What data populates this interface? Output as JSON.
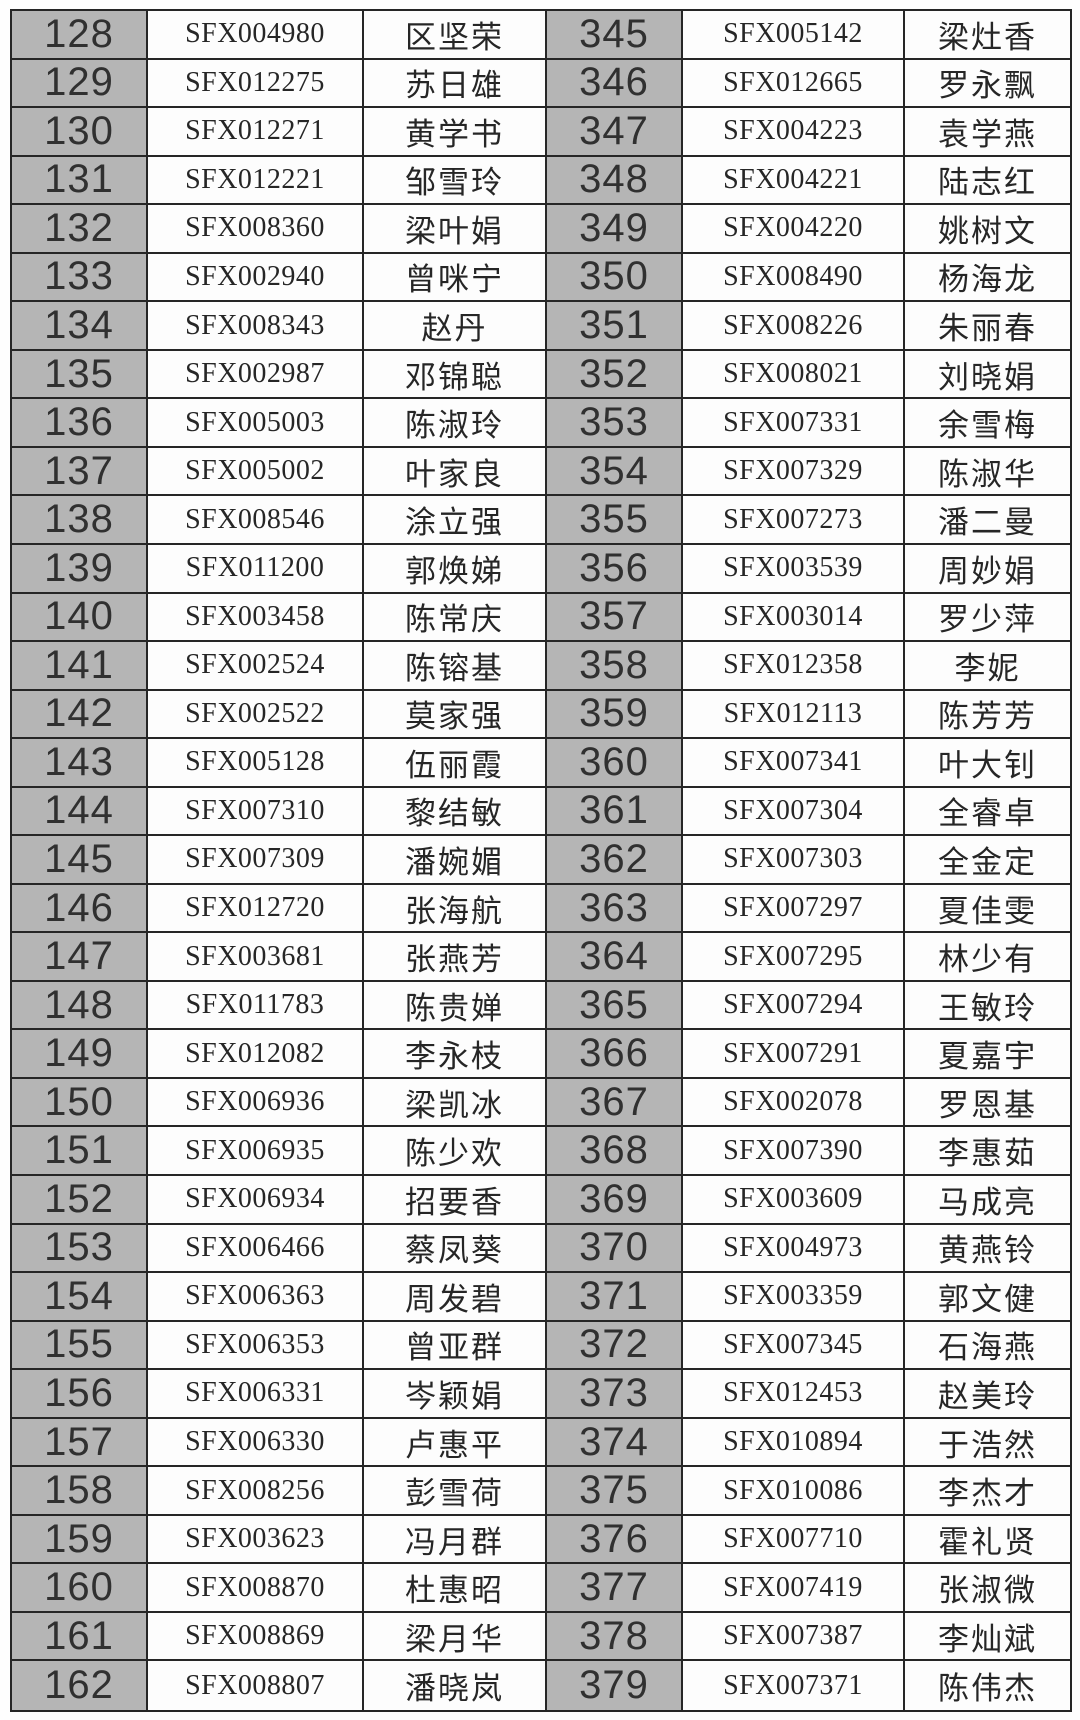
{
  "table": {
    "colors": {
      "number_column_bg": "#b5b5b5",
      "cell_bg": "#fdfdfd",
      "border": "#262626",
      "text": "#2a2a2a"
    },
    "left_rows": [
      {
        "no": "128",
        "code": "SFX004980",
        "name": "区坚荣"
      },
      {
        "no": "129",
        "code": "SFX012275",
        "name": "苏日雄"
      },
      {
        "no": "130",
        "code": "SFX012271",
        "name": "黄学书"
      },
      {
        "no": "131",
        "code": "SFX012221",
        "name": "邹雪玲"
      },
      {
        "no": "132",
        "code": "SFX008360",
        "name": "梁叶娟"
      },
      {
        "no": "133",
        "code": "SFX002940",
        "name": "曾咪宁"
      },
      {
        "no": "134",
        "code": "SFX008343",
        "name": "赵丹"
      },
      {
        "no": "135",
        "code": "SFX002987",
        "name": "邓锦聪"
      },
      {
        "no": "136",
        "code": "SFX005003",
        "name": "陈淑玲"
      },
      {
        "no": "137",
        "code": "SFX005002",
        "name": "叶家良"
      },
      {
        "no": "138",
        "code": "SFX008546",
        "name": "涂立强"
      },
      {
        "no": "139",
        "code": "SFX011200",
        "name": "郭焕娣"
      },
      {
        "no": "140",
        "code": "SFX003458",
        "name": "陈常庆"
      },
      {
        "no": "141",
        "code": "SFX002524",
        "name": "陈镕基"
      },
      {
        "no": "142",
        "code": "SFX002522",
        "name": "莫家强"
      },
      {
        "no": "143",
        "code": "SFX005128",
        "name": "伍丽霞"
      },
      {
        "no": "144",
        "code": "SFX007310",
        "name": "黎结敏"
      },
      {
        "no": "145",
        "code": "SFX007309",
        "name": "潘婉媚"
      },
      {
        "no": "146",
        "code": "SFX012720",
        "name": "张海航"
      },
      {
        "no": "147",
        "code": "SFX003681",
        "name": "张燕芳"
      },
      {
        "no": "148",
        "code": "SFX011783",
        "name": "陈贵婵"
      },
      {
        "no": "149",
        "code": "SFX012082",
        "name": "李永枝"
      },
      {
        "no": "150",
        "code": "SFX006936",
        "name": "梁凯冰"
      },
      {
        "no": "151",
        "code": "SFX006935",
        "name": "陈少欢"
      },
      {
        "no": "152",
        "code": "SFX006934",
        "name": "招要香"
      },
      {
        "no": "153",
        "code": "SFX006466",
        "name": "蔡凤葵"
      },
      {
        "no": "154",
        "code": "SFX006363",
        "name": "周发碧"
      },
      {
        "no": "155",
        "code": "SFX006353",
        "name": "曾亚群"
      },
      {
        "no": "156",
        "code": "SFX006331",
        "name": "岑颖娟"
      },
      {
        "no": "157",
        "code": "SFX006330",
        "name": "卢惠平"
      },
      {
        "no": "158",
        "code": "SFX008256",
        "name": "彭雪荷"
      },
      {
        "no": "159",
        "code": "SFX003623",
        "name": "冯月群"
      },
      {
        "no": "160",
        "code": "SFX008870",
        "name": "杜惠昭"
      },
      {
        "no": "161",
        "code": "SFX008869",
        "name": "梁月华"
      },
      {
        "no": "162",
        "code": "SFX008807",
        "name": "潘晓岚"
      }
    ],
    "right_rows": [
      {
        "no": "345",
        "code": "SFX005142",
        "name": "梁灶香"
      },
      {
        "no": "346",
        "code": "SFX012665",
        "name": "罗永飘"
      },
      {
        "no": "347",
        "code": "SFX004223",
        "name": "袁学燕"
      },
      {
        "no": "348",
        "code": "SFX004221",
        "name": "陆志红"
      },
      {
        "no": "349",
        "code": "SFX004220",
        "name": "姚树文"
      },
      {
        "no": "350",
        "code": "SFX008490",
        "name": "杨海龙"
      },
      {
        "no": "351",
        "code": "SFX008226",
        "name": "朱丽春"
      },
      {
        "no": "352",
        "code": "SFX008021",
        "name": "刘晓娟"
      },
      {
        "no": "353",
        "code": "SFX007331",
        "name": "余雪梅"
      },
      {
        "no": "354",
        "code": "SFX007329",
        "name": "陈淑华"
      },
      {
        "no": "355",
        "code": "SFX007273",
        "name": "潘二曼"
      },
      {
        "no": "356",
        "code": "SFX003539",
        "name": "周妙娟"
      },
      {
        "no": "357",
        "code": "SFX003014",
        "name": "罗少萍"
      },
      {
        "no": "358",
        "code": "SFX012358",
        "name": "李妮"
      },
      {
        "no": "359",
        "code": "SFX012113",
        "name": "陈芳芳"
      },
      {
        "no": "360",
        "code": "SFX007341",
        "name": "叶大钊"
      },
      {
        "no": "361",
        "code": "SFX007304",
        "name": "全睿卓"
      },
      {
        "no": "362",
        "code": "SFX007303",
        "name": "全金定"
      },
      {
        "no": "363",
        "code": "SFX007297",
        "name": "夏佳雯"
      },
      {
        "no": "364",
        "code": "SFX007295",
        "name": "林少有"
      },
      {
        "no": "365",
        "code": "SFX007294",
        "name": "王敏玲"
      },
      {
        "no": "366",
        "code": "SFX007291",
        "name": "夏嘉宇"
      },
      {
        "no": "367",
        "code": "SFX002078",
        "name": "罗恩基"
      },
      {
        "no": "368",
        "code": "SFX007390",
        "name": "李惠茹"
      },
      {
        "no": "369",
        "code": "SFX003609",
        "name": "马成亮"
      },
      {
        "no": "370",
        "code": "SFX004973",
        "name": "黄燕铃"
      },
      {
        "no": "371",
        "code": "SFX003359",
        "name": "郭文健"
      },
      {
        "no": "372",
        "code": "SFX007345",
        "name": "石海燕"
      },
      {
        "no": "373",
        "code": "SFX012453",
        "name": "赵美玲"
      },
      {
        "no": "374",
        "code": "SFX010894",
        "name": "于浩然"
      },
      {
        "no": "375",
        "code": "SFX010086",
        "name": "李杰才"
      },
      {
        "no": "376",
        "code": "SFX007710",
        "name": "霍礼贤"
      },
      {
        "no": "377",
        "code": "SFX007419",
        "name": "张淑微"
      },
      {
        "no": "378",
        "code": "SFX007387",
        "name": "李灿斌"
      },
      {
        "no": "379",
        "code": "SFX007371",
        "name": "陈伟杰"
      }
    ]
  }
}
